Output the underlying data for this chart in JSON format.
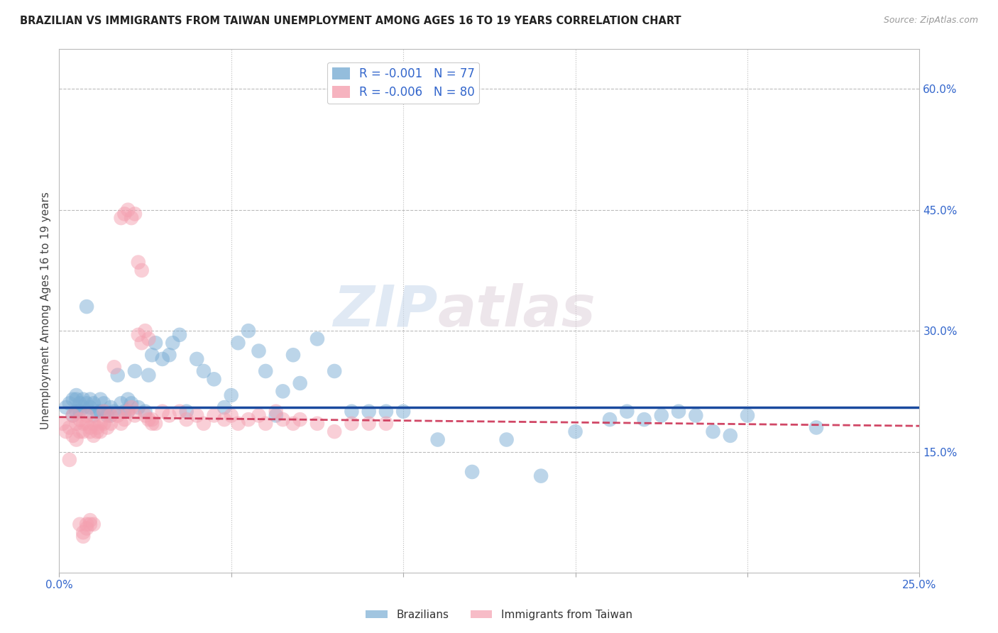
{
  "title": "BRAZILIAN VS IMMIGRANTS FROM TAIWAN UNEMPLOYMENT AMONG AGES 16 TO 19 YEARS CORRELATION CHART",
  "source": "Source: ZipAtlas.com",
  "ylabel": "Unemployment Among Ages 16 to 19 years",
  "xlim": [
    0.0,
    0.25
  ],
  "ylim": [
    0.0,
    0.65
  ],
  "xtick_positions": [
    0.0,
    0.05,
    0.1,
    0.15,
    0.2,
    0.25
  ],
  "xticklabels": [
    "0.0%",
    "",
    "",
    "",
    "",
    "25.0%"
  ],
  "yticks_right": [
    0.15,
    0.3,
    0.45,
    0.6
  ],
  "ytick_right_labels": [
    "15.0%",
    "30.0%",
    "45.0%",
    "60.0%"
  ],
  "legend_r1": "R = -0.001",
  "legend_n1": "N = 77",
  "legend_r2": "R = -0.006",
  "legend_n2": "N = 80",
  "blue_color": "#7aadd4",
  "pink_color": "#f4a0b0",
  "line_blue_color": "#1a4a9e",
  "line_pink_color": "#cc3355",
  "watermark_zip": "ZIP",
  "watermark_atlas": "atlas",
  "blue_line_y0": 0.205,
  "blue_line_y1": 0.205,
  "pink_line_y0": 0.193,
  "pink_line_y1": 0.182,
  "brazil_x": [
    0.002,
    0.003,
    0.004,
    0.004,
    0.005,
    0.005,
    0.005,
    0.006,
    0.006,
    0.007,
    0.007,
    0.008,
    0.008,
    0.009,
    0.009,
    0.01,
    0.01,
    0.011,
    0.012,
    0.012,
    0.013,
    0.013,
    0.014,
    0.015,
    0.015,
    0.016,
    0.017,
    0.018,
    0.019,
    0.02,
    0.02,
    0.021,
    0.022,
    0.023,
    0.025,
    0.026,
    0.027,
    0.028,
    0.03,
    0.032,
    0.033,
    0.035,
    0.037,
    0.04,
    0.042,
    0.045,
    0.048,
    0.05,
    0.052,
    0.055,
    0.058,
    0.06,
    0.063,
    0.065,
    0.068,
    0.07,
    0.075,
    0.08,
    0.085,
    0.09,
    0.095,
    0.1,
    0.11,
    0.12,
    0.13,
    0.14,
    0.15,
    0.16,
    0.165,
    0.17,
    0.175,
    0.18,
    0.185,
    0.19,
    0.195,
    0.2,
    0.22
  ],
  "brazil_y": [
    0.205,
    0.21,
    0.195,
    0.215,
    0.2,
    0.22,
    0.215,
    0.2,
    0.21,
    0.205,
    0.215,
    0.33,
    0.21,
    0.205,
    0.215,
    0.195,
    0.21,
    0.2,
    0.2,
    0.215,
    0.2,
    0.21,
    0.195,
    0.195,
    0.205,
    0.2,
    0.245,
    0.21,
    0.2,
    0.2,
    0.215,
    0.21,
    0.25,
    0.205,
    0.2,
    0.245,
    0.27,
    0.285,
    0.265,
    0.27,
    0.285,
    0.295,
    0.2,
    0.265,
    0.25,
    0.24,
    0.205,
    0.22,
    0.285,
    0.3,
    0.275,
    0.25,
    0.195,
    0.225,
    0.27,
    0.235,
    0.29,
    0.25,
    0.2,
    0.2,
    0.2,
    0.2,
    0.165,
    0.125,
    0.165,
    0.12,
    0.175,
    0.19,
    0.2,
    0.19,
    0.195,
    0.2,
    0.195,
    0.175,
    0.17,
    0.195,
    0.18
  ],
  "taiwan_x": [
    0.001,
    0.002,
    0.003,
    0.003,
    0.004,
    0.004,
    0.005,
    0.005,
    0.006,
    0.006,
    0.007,
    0.007,
    0.008,
    0.008,
    0.009,
    0.009,
    0.01,
    0.01,
    0.011,
    0.011,
    0.012,
    0.012,
    0.013,
    0.013,
    0.014,
    0.015,
    0.015,
    0.016,
    0.017,
    0.018,
    0.019,
    0.02,
    0.021,
    0.022,
    0.023,
    0.024,
    0.025,
    0.026,
    0.027,
    0.028,
    0.03,
    0.032,
    0.035,
    0.037,
    0.04,
    0.042,
    0.045,
    0.048,
    0.05,
    0.052,
    0.055,
    0.058,
    0.06,
    0.063,
    0.065,
    0.068,
    0.07,
    0.075,
    0.08,
    0.085,
    0.09,
    0.095,
    0.018,
    0.019,
    0.02,
    0.021,
    0.022,
    0.023,
    0.024,
    0.025,
    0.026,
    0.027,
    0.006,
    0.007,
    0.007,
    0.008,
    0.008,
    0.009,
    0.009,
    0.01
  ],
  "taiwan_y": [
    0.185,
    0.175,
    0.18,
    0.14,
    0.195,
    0.17,
    0.185,
    0.165,
    0.19,
    0.175,
    0.185,
    0.175,
    0.195,
    0.185,
    0.18,
    0.175,
    0.185,
    0.17,
    0.18,
    0.175,
    0.175,
    0.185,
    0.2,
    0.185,
    0.18,
    0.195,
    0.185,
    0.255,
    0.195,
    0.185,
    0.19,
    0.2,
    0.205,
    0.195,
    0.295,
    0.285,
    0.3,
    0.29,
    0.19,
    0.185,
    0.2,
    0.195,
    0.2,
    0.19,
    0.195,
    0.185,
    0.195,
    0.19,
    0.195,
    0.185,
    0.19,
    0.195,
    0.185,
    0.2,
    0.19,
    0.185,
    0.19,
    0.185,
    0.175,
    0.185,
    0.185,
    0.185,
    0.44,
    0.445,
    0.45,
    0.44,
    0.445,
    0.385,
    0.375,
    0.195,
    0.19,
    0.185,
    0.06,
    0.05,
    0.045,
    0.055,
    0.06,
    0.06,
    0.065,
    0.06
  ]
}
